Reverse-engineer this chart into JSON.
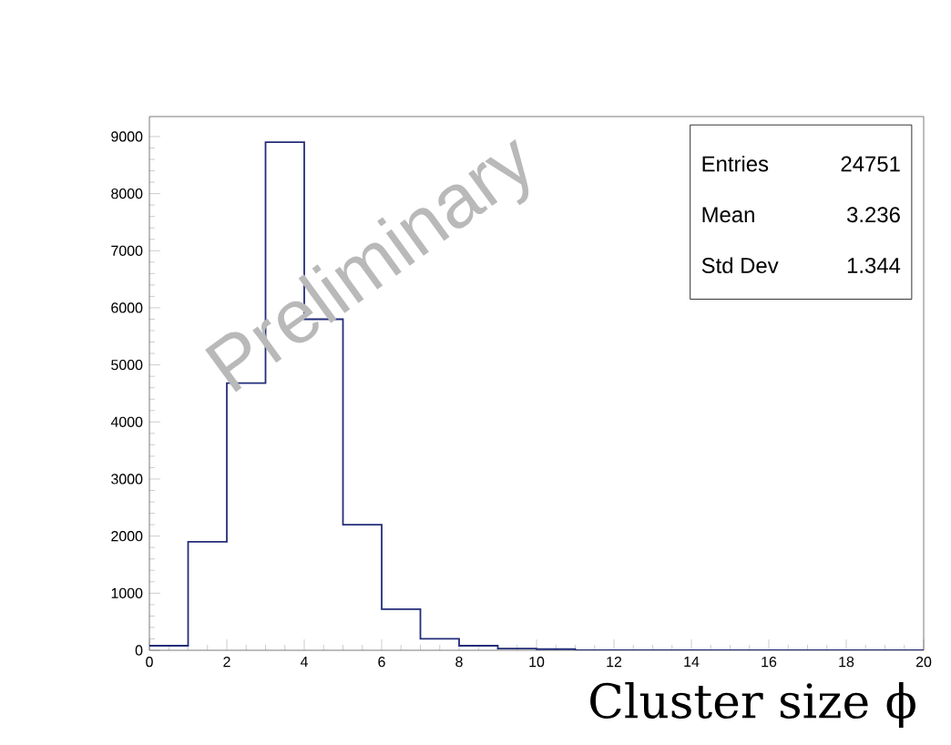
{
  "chart_data": {
    "type": "histogram",
    "xlabel": "Cluster size ϕ",
    "bins": [
      0,
      1,
      2,
      3,
      4,
      5,
      6,
      7,
      8,
      9,
      10,
      11,
      12,
      13,
      14,
      15,
      16,
      17,
      18,
      19,
      20
    ],
    "values": [
      80,
      1900,
      4680,
      8900,
      5800,
      2200,
      720,
      200,
      80,
      30,
      20,
      0,
      0,
      0,
      0,
      0,
      0,
      0,
      0,
      0
    ],
    "color": "#232d78",
    "xlim": [
      0,
      20
    ],
    "ylim": [
      0,
      9350
    ],
    "xticks": [
      0,
      2,
      4,
      6,
      8,
      10,
      12,
      14,
      16,
      18,
      20
    ],
    "yticks": [
      0,
      1000,
      2000,
      3000,
      4000,
      5000,
      6000,
      7000,
      8000,
      9000
    ],
    "grid": false,
    "annotations": [
      "Preliminary",
      "Entries",
      "24751",
      "Mean",
      "3.236",
      "Std Dev",
      "1.344"
    ]
  }
}
